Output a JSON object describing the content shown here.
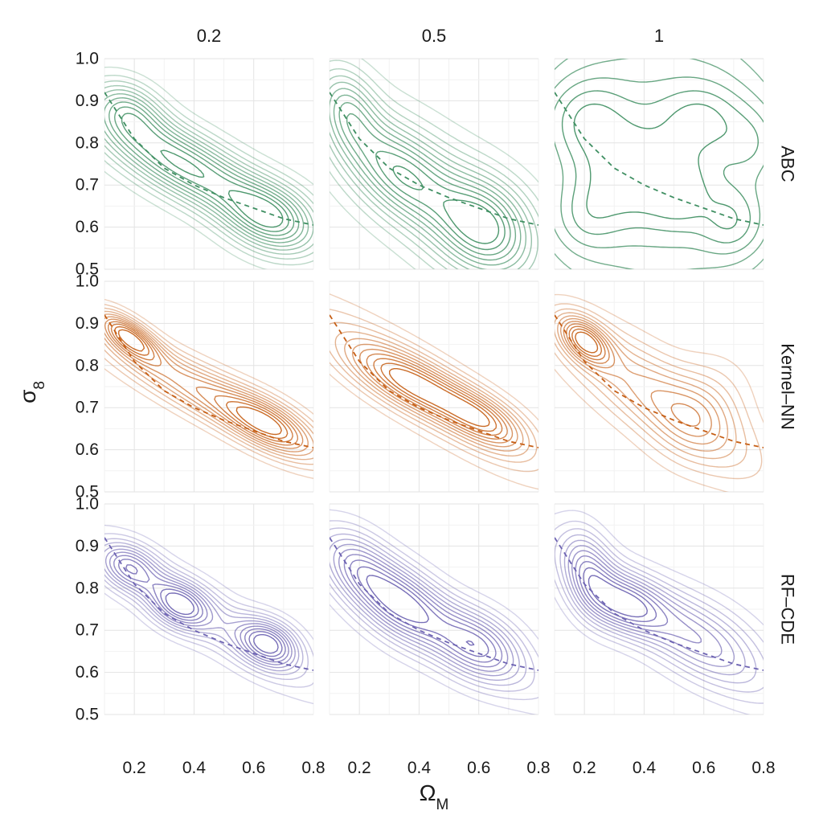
{
  "chart_data": {
    "type": "contour",
    "description_source": "faceted density contour plots",
    "column_facets": [
      "0.2",
      "0.5",
      "1"
    ],
    "row_facets": [
      {
        "label": "ABC",
        "color": "#3f8f62"
      },
      {
        "label": "Kernel–NN",
        "color": "#c65f16"
      },
      {
        "label": "RF–CDE",
        "color": "#6d63b2"
      }
    ],
    "xlabel": {
      "symbol": "Ω",
      "subscript": "M"
    },
    "ylabel": {
      "symbol": "σ",
      "subscript": "8"
    },
    "xlim": [
      0.1,
      0.8
    ],
    "ylim": [
      0.5,
      1.0
    ],
    "x_ticks": [
      "0.2",
      "0.4",
      "0.6",
      "0.8"
    ],
    "y_ticks": [
      "0.5",
      "0.6",
      "0.7",
      "0.8",
      "0.9",
      "1.0"
    ],
    "grid": true,
    "reference_curve": {
      "style": "dashed",
      "x": [
        0.1,
        0.2,
        0.3,
        0.4,
        0.5,
        0.6,
        0.7,
        0.8
      ],
      "y": [
        0.92,
        0.81,
        0.74,
        0.7,
        0.67,
        0.645,
        0.62,
        0.605
      ]
    },
    "panels": [
      {
        "row": "ABC",
        "col": "0.2",
        "modes": [
          {
            "x": 0.36,
            "y": 0.75,
            "sx": 0.2,
            "sy": 0.09,
            "r": -0.75,
            "w": 1.0
          },
          {
            "x": 0.18,
            "y": 0.88,
            "sx": 0.08,
            "sy": 0.05,
            "r": -0.3,
            "w": 0.5
          },
          {
            "x": 0.66,
            "y": 0.62,
            "sx": 0.11,
            "sy": 0.06,
            "r": -0.3,
            "w": 0.8
          }
        ]
      },
      {
        "row": "ABC",
        "col": "0.5",
        "modes": [
          {
            "x": 0.16,
            "y": 0.88,
            "sx": 0.07,
            "sy": 0.07,
            "r": -0.3,
            "w": 0.7
          },
          {
            "x": 0.33,
            "y": 0.73,
            "sx": 0.12,
            "sy": 0.08,
            "r": -0.5,
            "w": 0.8
          },
          {
            "x": 0.62,
            "y": 0.6,
            "sx": 0.11,
            "sy": 0.08,
            "r": -0.2,
            "w": 1.0
          },
          {
            "x": 0.45,
            "y": 0.68,
            "sx": 0.25,
            "sy": 0.15,
            "r": -0.7,
            "w": 0.6
          }
        ]
      },
      {
        "row": "ABC",
        "col": "1",
        "modes": [
          {
            "x": 0.45,
            "y": 0.75,
            "sx": 0.5,
            "sy": 0.4,
            "r": 0.0,
            "w": 1.0
          },
          {
            "x": 0.2,
            "y": 0.86,
            "sx": 0.1,
            "sy": 0.07,
            "r": 0.0,
            "w": 0.3
          },
          {
            "x": 0.6,
            "y": 0.86,
            "sx": 0.1,
            "sy": 0.06,
            "r": 0.0,
            "w": 0.25
          },
          {
            "x": 0.35,
            "y": 0.72,
            "sx": 0.12,
            "sy": 0.08,
            "r": 0.0,
            "w": 0.25
          },
          {
            "x": 0.7,
            "y": 0.61,
            "sx": 0.08,
            "sy": 0.06,
            "r": 0.0,
            "w": 0.3
          },
          {
            "x": 0.2,
            "y": 0.62,
            "sx": 0.08,
            "sy": 0.06,
            "r": 0.0,
            "w": 0.2
          },
          {
            "x": 0.52,
            "y": 0.68,
            "sx": 0.07,
            "sy": 0.06,
            "r": 0.0,
            "w": 0.2
          },
          {
            "x": 0.77,
            "y": 0.8,
            "sx": 0.07,
            "sy": 0.06,
            "r": 0.0,
            "w": 0.2
          }
        ]
      },
      {
        "row": "Kernel–NN",
        "col": "0.2",
        "modes": [
          {
            "x": 0.18,
            "y": 0.87,
            "sx": 0.07,
            "sy": 0.04,
            "r": -0.7,
            "w": 1.0
          },
          {
            "x": 0.45,
            "y": 0.73,
            "sx": 0.25,
            "sy": 0.1,
            "r": -0.9,
            "w": 0.8
          },
          {
            "x": 0.65,
            "y": 0.66,
            "sx": 0.1,
            "sy": 0.05,
            "r": -0.6,
            "w": 0.7
          }
        ]
      },
      {
        "row": "Kernel–NN",
        "col": "0.5",
        "modes": [
          {
            "x": 0.37,
            "y": 0.76,
            "sx": 0.14,
            "sy": 0.06,
            "r": -0.7,
            "w": 1.0
          },
          {
            "x": 0.62,
            "y": 0.67,
            "sx": 0.1,
            "sy": 0.05,
            "r": -0.6,
            "w": 0.9
          },
          {
            "x": 0.4,
            "y": 0.75,
            "sx": 0.28,
            "sy": 0.14,
            "r": -0.9,
            "w": 0.6
          }
        ]
      },
      {
        "row": "Kernel–NN",
        "col": "1",
        "modes": [
          {
            "x": 0.2,
            "y": 0.86,
            "sx": 0.06,
            "sy": 0.04,
            "r": -0.5,
            "w": 1.0
          },
          {
            "x": 0.45,
            "y": 0.72,
            "sx": 0.22,
            "sy": 0.12,
            "r": -0.8,
            "w": 0.7
          },
          {
            "x": 0.6,
            "y": 0.7,
            "sx": 0.1,
            "sy": 0.08,
            "r": 0.2,
            "w": 0.3
          }
        ]
      },
      {
        "row": "RF–CDE",
        "col": "0.2",
        "modes": [
          {
            "x": 0.18,
            "y": 0.85,
            "sx": 0.07,
            "sy": 0.04,
            "r": -0.3,
            "w": 0.8
          },
          {
            "x": 0.35,
            "y": 0.76,
            "sx": 0.07,
            "sy": 0.04,
            "r": -0.3,
            "w": 0.9
          },
          {
            "x": 0.65,
            "y": 0.67,
            "sx": 0.07,
            "sy": 0.04,
            "r": -0.3,
            "w": 1.0
          },
          {
            "x": 0.45,
            "y": 0.73,
            "sx": 0.26,
            "sy": 0.12,
            "r": -0.9,
            "w": 0.5
          }
        ]
      },
      {
        "row": "RF–CDE",
        "col": "0.5",
        "modes": [
          {
            "x": 0.33,
            "y": 0.76,
            "sx": 0.11,
            "sy": 0.07,
            "r": -0.5,
            "w": 1.0
          },
          {
            "x": 0.6,
            "y": 0.66,
            "sx": 0.1,
            "sy": 0.06,
            "r": -0.3,
            "w": 0.8
          },
          {
            "x": 0.18,
            "y": 0.86,
            "sx": 0.08,
            "sy": 0.06,
            "r": -0.3,
            "w": 0.5
          },
          {
            "x": 0.45,
            "y": 0.73,
            "sx": 0.28,
            "sy": 0.14,
            "r": -0.9,
            "w": 0.5
          }
        ]
      },
      {
        "row": "RF–CDE",
        "col": "1",
        "modes": [
          {
            "x": 0.21,
            "y": 0.84,
            "sx": 0.06,
            "sy": 0.07,
            "r": -0.3,
            "w": 0.8
          },
          {
            "x": 0.33,
            "y": 0.76,
            "sx": 0.09,
            "sy": 0.05,
            "r": -0.3,
            "w": 1.0
          },
          {
            "x": 0.6,
            "y": 0.68,
            "sx": 0.15,
            "sy": 0.08,
            "r": -0.5,
            "w": 0.6
          },
          {
            "x": 0.45,
            "y": 0.73,
            "sx": 0.28,
            "sy": 0.14,
            "r": -0.9,
            "w": 0.5
          }
        ]
      }
    ]
  }
}
